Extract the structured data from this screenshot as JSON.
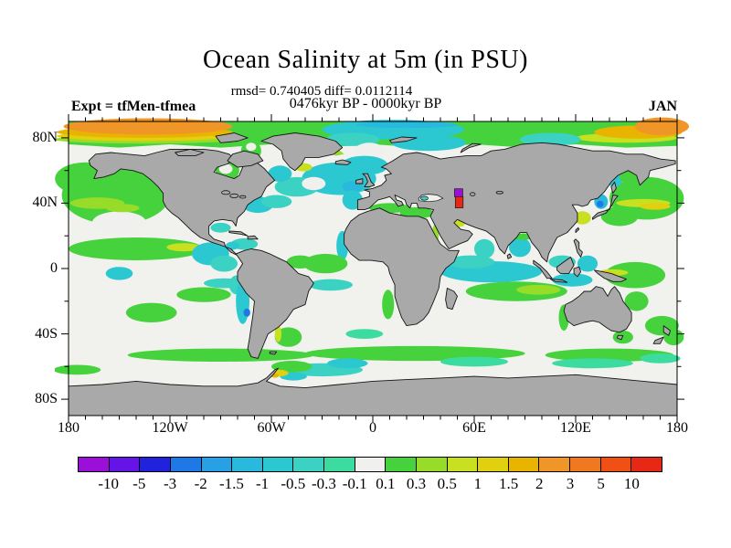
{
  "header": {
    "title": "Ocean Salinity at 5m (in PSU)",
    "stats_line": "rmsd= 0.740405 diff= 0.0112114",
    "period_line": "0476kyr BP - 0000kyr BP",
    "experiment_label": "Expt = tfMen-tfmea",
    "month_label": "JAN"
  },
  "chart_data": {
    "type": "heatmap",
    "projection": "equirectangular-world-map",
    "title": "Ocean Salinity at 5m (in PSU)",
    "subtitle": "rmsd= 0.740405 diff= 0.0112114",
    "period": "0476kyr BP - 0000kyr BP",
    "experiment": "tfMen-tfmea",
    "month": "JAN",
    "units": "PSU",
    "rmsd": 0.740405,
    "diff": 0.0112114,
    "x_axis": {
      "tick_labels": [
        "180",
        "120W",
        "60W",
        "0",
        "60E",
        "120E",
        "180"
      ],
      "tick_lons": [
        -180,
        -120,
        -60,
        0,
        60,
        120,
        180
      ],
      "minor_step_deg": 10,
      "range_deg": [
        -180,
        180
      ]
    },
    "y_axis": {
      "tick_labels": [
        "80N",
        "40N",
        "0",
        "40S",
        "80S"
      ],
      "tick_lats": [
        80,
        40,
        0,
        -40,
        -80
      ],
      "minor_step_deg": 20,
      "range_deg": [
        -90,
        90
      ]
    },
    "colorbar": {
      "levels": [
        -10,
        -5,
        -3,
        -2,
        -1.5,
        -1,
        -0.5,
        -0.3,
        -0.1,
        0.1,
        0.3,
        0.5,
        1,
        1.5,
        2,
        3,
        5,
        10
      ],
      "level_labels": [
        "-10",
        "-5",
        "-3",
        "-2",
        "-1.5",
        "-1",
        "-0.5",
        "-0.3",
        "-0.1",
        "0.1",
        "0.3",
        "0.5",
        "1",
        "1.5",
        "2",
        "3",
        "5",
        "10"
      ],
      "colors": [
        "#9b10d8",
        "#6414e6",
        "#2222dc",
        "#1e78e6",
        "#28a0e6",
        "#28b9dc",
        "#2cc8d2",
        "#3cd2c3",
        "#3cdca0",
        "#f0f0ee",
        "#46d23c",
        "#96dc28",
        "#c8e020",
        "#e0d010",
        "#e8b400",
        "#f09628",
        "#f07820",
        "#f05014",
        "#e62814"
      ]
    },
    "land_color": "#a9a9a9",
    "ocean_color": "#f1f1ed",
    "coast_color": "#151515",
    "anomaly_patches": [
      [
        "p",
        [
          [
            -180,
            90
          ],
          [
            180,
            90
          ],
          [
            180,
            75
          ],
          [
            150,
            74
          ],
          [
            120,
            76
          ],
          [
            90,
            74
          ],
          [
            60,
            76
          ],
          [
            30,
            74
          ],
          [
            0,
            76
          ],
          [
            -30,
            74
          ],
          [
            -60,
            76
          ],
          [
            -90,
            74
          ],
          [
            -120,
            76
          ],
          [
            -150,
            74
          ],
          [
            -180,
            76
          ]
        ],
        0.2
      ],
      [
        "e",
        -135,
        79,
        54,
        2.5,
        0.4
      ],
      [
        "e",
        -135,
        81,
        52,
        3,
        1.2
      ],
      [
        "e",
        -135,
        83.5,
        52,
        3.5,
        1.7
      ],
      [
        "e",
        -133,
        87,
        50,
        5,
        2.5
      ],
      [
        "e",
        150,
        80,
        30,
        3,
        0.7
      ],
      [
        "e",
        157,
        83.5,
        26,
        4,
        1.7
      ],
      [
        "e",
        171,
        87,
        16,
        5.5,
        2.5
      ],
      [
        "e",
        12,
        85,
        42,
        6,
        -0.7
      ],
      [
        "e",
        20,
        88,
        30,
        2,
        -1.2
      ],
      [
        "e",
        33,
        77,
        22,
        5,
        -0.7
      ],
      [
        "e",
        -12,
        79,
        16,
        4,
        -0.4
      ],
      [
        "e",
        -45,
        76,
        10,
        4,
        0
      ],
      [
        "e",
        -2,
        72,
        9,
        5,
        0
      ],
      [
        "e",
        105,
        79,
        18,
        4,
        -0.4
      ],
      [
        "e",
        -152,
        45,
        32,
        18,
        0.2
      ],
      [
        "e",
        -170,
        55,
        18,
        10,
        0.2
      ],
      [
        "e",
        -135,
        57,
        16,
        8,
        0.2
      ],
      [
        "e",
        -150,
        28,
        16,
        7,
        0
      ],
      [
        "e",
        -163,
        40,
        16,
        3.5,
        0.4
      ],
      [
        "e",
        -148,
        37,
        10,
        2.5,
        0.4
      ],
      [
        "e",
        162,
        43,
        22,
        13,
        0.2
      ],
      [
        "e",
        160,
        40,
        16,
        2.5,
        0.7
      ],
      [
        "e",
        167,
        38,
        9,
        2,
        1.2
      ],
      [
        "e",
        146,
        32,
        11,
        6,
        0.2
      ],
      [
        "e",
        124,
        31,
        5,
        4,
        0.7
      ],
      [
        "e",
        143,
        55,
        5,
        5,
        -0.7
      ],
      [
        "e",
        152,
        56,
        6,
        4,
        0.2
      ],
      [
        "e",
        135,
        41,
        4,
        4.5,
        -1.2
      ],
      [
        "e",
        134.5,
        39.5,
        2,
        2,
        -2.5
      ],
      [
        "e",
        -140,
        12,
        40,
        7,
        0.2
      ],
      [
        "e",
        -112,
        13,
        10,
        2.5,
        0.7
      ],
      [
        "e",
        -96,
        9,
        11,
        7,
        -0.7
      ],
      [
        "e",
        -88,
        3,
        8,
        5,
        -0.4
      ],
      [
        "e",
        -150,
        -3,
        8,
        4,
        -0.7
      ],
      [
        "e",
        -131,
        -27,
        15,
        6,
        0.2
      ],
      [
        "e",
        -100,
        -16,
        16,
        4.5,
        0.2
      ],
      [
        "e",
        -88,
        -9,
        12,
        3,
        -0.4
      ],
      [
        "e",
        -80,
        -10,
        5,
        6,
        -0.4
      ],
      [
        "e",
        -77,
        -20,
        4,
        14,
        -0.7
      ],
      [
        "e",
        -74.5,
        -27,
        2,
        2.5,
        -2.5
      ],
      [
        "e",
        155,
        -4,
        18,
        8,
        0.2
      ],
      [
        "e",
        142,
        -2.5,
        9,
        2,
        0.7
      ],
      [
        "e",
        137,
        -2.5,
        4,
        1.5,
        1.2
      ],
      [
        "e",
        118,
        -7,
        12,
        4,
        -0.7
      ],
      [
        "e",
        127,
        3,
        6,
        5,
        -0.7
      ],
      [
        "e",
        112,
        4,
        8,
        4,
        -0.4
      ],
      [
        "e",
        156,
        -20,
        7,
        6,
        0.2
      ],
      [
        "e",
        171,
        -35,
        10,
        6,
        0.2
      ],
      [
        "e",
        178,
        -42,
        6,
        5,
        0.2
      ],
      [
        "e",
        70,
        -2,
        30,
        6.5,
        -0.7
      ],
      [
        "e",
        58,
        4,
        14,
        4,
        -0.4
      ],
      [
        "e",
        87,
        13,
        6.5,
        6,
        -0.7
      ],
      [
        "e",
        89,
        19.5,
        6,
        2,
        0.2
      ],
      [
        "e",
        66,
        12,
        6,
        6,
        -0.4
      ],
      [
        "e",
        85,
        -14,
        30,
        6,
        0.2
      ],
      [
        "e",
        98,
        -13,
        13,
        3,
        0.4
      ],
      [
        "e",
        113,
        -30,
        3,
        8,
        0.2
      ],
      [
        "e",
        148,
        -42,
        6,
        4,
        0.2
      ],
      [
        "e",
        -20,
        55,
        22,
        10,
        -0.7
      ],
      [
        "e",
        -5,
        63,
        14,
        6,
        -0.7
      ],
      [
        "e",
        -45,
        50,
        13,
        6,
        -0.4
      ],
      [
        "e",
        -35,
        52,
        7,
        4,
        0
      ],
      [
        "e",
        -12,
        50,
        6,
        3.5,
        -1.2
      ],
      [
        "e",
        -12,
        42,
        6,
        6,
        -0.7
      ],
      [
        "e",
        -55,
        58,
        7,
        5,
        -0.7
      ],
      [
        "e",
        -72,
        72,
        6,
        6,
        0.2
      ],
      [
        "e",
        -72,
        74.5,
        3,
        2.5,
        0
      ],
      [
        "p",
        [
          [
            -22,
            69
          ],
          [
            -30,
            75
          ],
          [
            -37,
            80
          ],
          [
            -32,
            81
          ],
          [
            -24,
            76
          ],
          [
            -17,
            70
          ]
        ],
        0.4
      ],
      [
        "e",
        -41,
        62,
        5,
        2.5,
        0.7
      ],
      [
        "e",
        -86,
        60,
        7,
        6,
        0.2
      ],
      [
        "e",
        -87,
        61,
        4,
        3,
        0
      ],
      [
        "e",
        -68,
        39,
        9,
        5,
        -0.7
      ],
      [
        "e",
        -57,
        41,
        9,
        4,
        -0.4
      ],
      [
        "e",
        -90,
        25,
        6,
        3,
        -0.4
      ],
      [
        "e",
        -76,
        15,
        8,
        3.5,
        -0.4
      ],
      [
        "e",
        -83,
        14,
        4,
        2.5,
        -0.7
      ],
      [
        "e",
        -18,
        14,
        3.5,
        9,
        -0.7
      ],
      [
        "e",
        -28,
        3,
        13,
        6,
        0.2
      ],
      [
        "e",
        -43,
        4,
        8,
        4,
        0.2
      ],
      [
        "e",
        -25,
        -10,
        13,
        3.5,
        -0.4
      ],
      [
        "e",
        -50,
        -42,
        8,
        6,
        0.2
      ],
      [
        "e",
        -56,
        -40,
        2,
        5,
        0.7
      ],
      [
        "e",
        -5,
        -40,
        11,
        3,
        -0.2
      ],
      [
        "e",
        9,
        -22,
        3.5,
        9,
        0.2
      ],
      [
        "e",
        10,
        37,
        12,
        3,
        0.2
      ],
      [
        "e",
        26,
        34,
        10,
        3.5,
        0.2
      ],
      [
        "e",
        51,
        27.5,
        3.5,
        2,
        0.7
      ],
      [
        "e",
        37,
        21,
        2,
        6,
        0.4
      ],
      [
        "e",
        -90,
        -53,
        55,
        4,
        0.2
      ],
      [
        "e",
        25,
        -52,
        65,
        4.5,
        0.2
      ],
      [
        "e",
        140,
        -53,
        38,
        4,
        0.2
      ],
      [
        "e",
        -175,
        -62,
        14,
        3,
        0.2
      ],
      [
        "e",
        130,
        -58,
        24,
        3,
        -0.2
      ],
      [
        "e",
        60,
        -57,
        20,
        3,
        -0.2
      ],
      [
        "e",
        -30,
        -62,
        24,
        4,
        -0.4
      ],
      [
        "e",
        -15,
        -58,
        12,
        3,
        -0.7
      ],
      [
        "e",
        -48,
        -60,
        12,
        3.5,
        0.2
      ],
      [
        "e",
        -47,
        -66,
        8,
        2.5,
        -0.7
      ],
      [
        "e",
        -55,
        -64,
        5,
        2,
        1.2
      ],
      [
        "e",
        -58,
        -65.5,
        2.5,
        1.3,
        1.7
      ],
      [
        "e",
        170,
        -55,
        12,
        3,
        -0.2
      ]
    ],
    "overlay_patches": [
      [
        "p",
        [
          [
            27.5,
            41.5
          ],
          [
            33,
            41
          ],
          [
            38,
            41.5
          ],
          [
            41.5,
            43
          ],
          [
            38,
            45
          ],
          [
            33,
            45.5
          ],
          [
            29,
            45
          ],
          [
            27,
            43
          ]
        ],
        0
      ],
      [
        "e",
        30.5,
        43,
        2.2,
        1.2,
        -0.4
      ],
      [
        "p",
        [
          [
            48.3,
            44
          ],
          [
            53.2,
            44
          ],
          [
            53.2,
            48.8
          ],
          [
            48.3,
            48.8
          ]
        ],
        -12
      ],
      [
        "p",
        [
          [
            48.8,
            37.2
          ],
          [
            53.4,
            37.2
          ],
          [
            53.4,
            44
          ],
          [
            48.8,
            44
          ]
        ],
        12
      ]
    ]
  }
}
